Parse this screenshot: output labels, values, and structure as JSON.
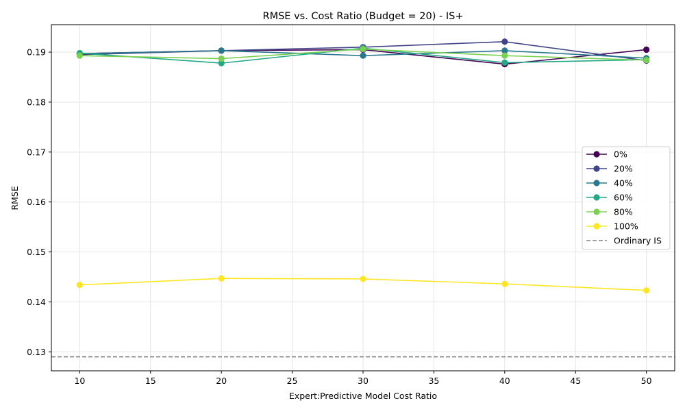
{
  "chart_data": {
    "type": "line",
    "title": "RMSE vs. Cost Ratio (Budget = 20) - IS+",
    "xlabel": "Expert:Predictive Model Cost Ratio",
    "ylabel": "RMSE",
    "xlim": [
      8,
      52
    ],
    "ylim": [
      0.1262,
      0.1955
    ],
    "xticks": [
      10,
      15,
      20,
      25,
      30,
      35,
      40,
      45,
      50
    ],
    "yticks": [
      0.13,
      0.14,
      0.15,
      0.16,
      0.17,
      0.18,
      0.19
    ],
    "xtick_labels": [
      "10",
      "15",
      "20",
      "25",
      "30",
      "35",
      "40",
      "45",
      "50"
    ],
    "ytick_labels": [
      "0.13",
      "0.14",
      "0.15",
      "0.16",
      "0.17",
      "0.18",
      "0.19"
    ],
    "grid": true,
    "legend_position": "center-right",
    "x": [
      10,
      20,
      30,
      40,
      50
    ],
    "series": [
      {
        "name": "0%",
        "color": "#440154",
        "values": [
          0.1897,
          0.1903,
          0.1905,
          0.1876,
          0.1905
        ]
      },
      {
        "name": "20%",
        "color": "#414487",
        "values": [
          0.1895,
          0.1903,
          0.191,
          0.1921,
          0.1883
        ]
      },
      {
        "name": "40%",
        "color": "#2a788e",
        "values": [
          0.1897,
          0.1903,
          0.1893,
          0.1903,
          0.1888
        ]
      },
      {
        "name": "60%",
        "color": "#22a884",
        "values": [
          0.1898,
          0.1878,
          0.1908,
          0.1879,
          0.1885
        ]
      },
      {
        "name": "80%",
        "color": "#7ad151",
        "values": [
          0.1893,
          0.1887,
          0.1906,
          0.1893,
          0.1884
        ]
      },
      {
        "name": "100%",
        "color": "#fde725",
        "values": [
          0.1434,
          0.1447,
          0.1446,
          0.1436,
          0.1423
        ]
      }
    ],
    "reference_line": {
      "name": "Ordinary IS",
      "value": 0.129,
      "color": "#808080",
      "style": "dashed"
    }
  }
}
